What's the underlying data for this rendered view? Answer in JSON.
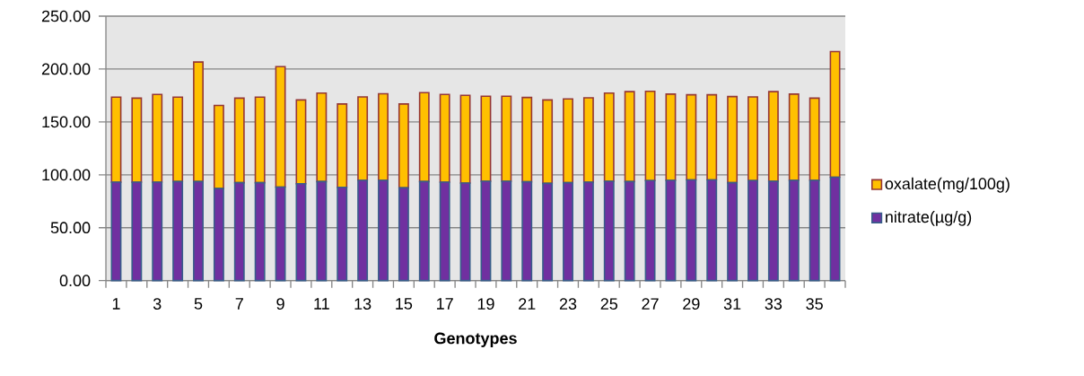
{
  "chart_data": {
    "type": "bar",
    "stacked": true,
    "xlabel": "Genotypes",
    "categories": [
      "1",
      null,
      "3",
      null,
      "5",
      null,
      "7",
      null,
      "9",
      null,
      "11",
      null,
      "13",
      null,
      "15",
      null,
      "17",
      null,
      "19",
      null,
      "21",
      null,
      "23",
      null,
      "25",
      null,
      "27",
      null,
      "29",
      null,
      "31",
      null,
      "33",
      null,
      "35",
      null
    ],
    "series": [
      {
        "name": "nitrate(µg/g)",
        "color": "#7030a0",
        "values": [
          93.1,
          93.1,
          93.1,
          93.6,
          93.6,
          87.0,
          92.5,
          92.5,
          88.4,
          91.6,
          93.6,
          88.2,
          94.8,
          94.8,
          87.6,
          93.6,
          93.1,
          92.2,
          93.9,
          93.9,
          93.4,
          91.9,
          92.5,
          93.1,
          93.9,
          93.6,
          94.5,
          94.8,
          95.1,
          95.1,
          92.5,
          94.5,
          93.9,
          94.8,
          94.8,
          97.7
        ]
      },
      {
        "name": "oxalate(mg/100g)",
        "color": "#ffc000",
        "values": [
          80.3,
          79.4,
          82.9,
          79.8,
          113.0,
          78.6,
          80.0,
          80.9,
          113.9,
          79.2,
          83.6,
          78.8,
          78.9,
          81.8,
          79.4,
          84.1,
          82.9,
          82.9,
          80.4,
          80.4,
          79.7,
          78.9,
          79.2,
          79.7,
          83.3,
          85.0,
          84.4,
          81.5,
          80.6,
          80.6,
          81.5,
          79.2,
          84.7,
          81.5,
          77.7,
          118.8
        ]
      }
    ],
    "ylim": [
      0,
      250
    ],
    "yticks": [
      {
        "value": 0,
        "label": "0.00"
      },
      {
        "value": 50,
        "label": "50.00"
      },
      {
        "value": 100,
        "label": "100.00"
      },
      {
        "value": 150,
        "label": "150.00"
      },
      {
        "value": 200,
        "label": "200.00"
      },
      {
        "value": 250,
        "label": "250.00"
      }
    ],
    "grid": "y",
    "legend": "right"
  }
}
